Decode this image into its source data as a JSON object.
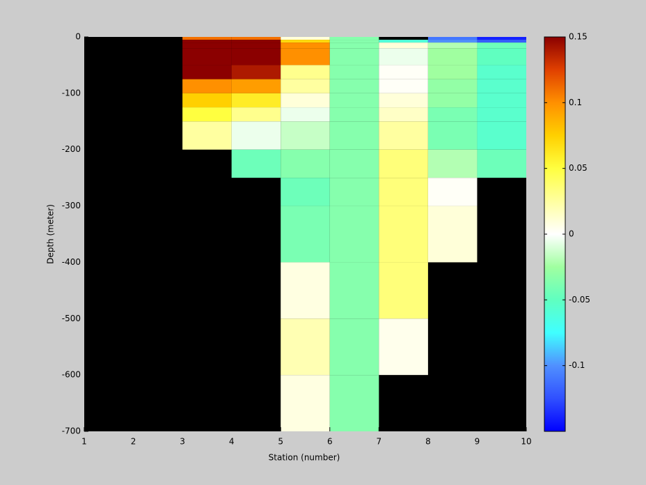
{
  "chart_data": {
    "type": "heatmap",
    "xlabel": "Station (number)",
    "ylabel": "Depth (meter)",
    "x": [
      1,
      2,
      3,
      4,
      5,
      6,
      7,
      8,
      9,
      10
    ],
    "y": [
      0,
      -5,
      -10,
      -20,
      -50,
      -75,
      -100,
      -125,
      -150,
      -200,
      -250,
      -300,
      -350,
      -400,
      -500,
      -600,
      -700
    ],
    "values": [
      [
        null,
        null,
        0.11,
        0.11,
        0.01,
        -0.035,
        null,
        -0.11,
        -0.14
      ],
      [
        null,
        null,
        0.15,
        0.15,
        0.07,
        -0.035,
        -0.06,
        -0.1,
        -0.12
      ],
      [
        null,
        null,
        0.15,
        0.15,
        0.1,
        -0.035,
        0.01,
        -0.02,
        -0.045
      ],
      [
        null,
        null,
        0.15,
        0.15,
        0.1,
        -0.035,
        -0.005,
        -0.025,
        -0.05
      ],
      [
        null,
        null,
        0.15,
        0.14,
        0.03,
        -0.035,
        0.002,
        -0.025,
        -0.055
      ],
      [
        null,
        null,
        0.1,
        0.095,
        0.025,
        -0.035,
        0.002,
        -0.03,
        -0.055
      ],
      [
        null,
        null,
        0.075,
        0.06,
        0.01,
        -0.035,
        0.01,
        -0.03,
        -0.055
      ],
      [
        null,
        null,
        0.05,
        0.03,
        -0.005,
        -0.035,
        0.015,
        -0.04,
        -0.055
      ],
      [
        null,
        null,
        0.025,
        -0.005,
        -0.015,
        -0.035,
        0.025,
        -0.04,
        -0.055
      ],
      [
        null,
        null,
        null,
        -0.045,
        -0.035,
        -0.035,
        0.035,
        -0.02,
        -0.045
      ],
      [
        null,
        null,
        null,
        null,
        -0.045,
        -0.035,
        0.035,
        0.002,
        null
      ],
      [
        null,
        null,
        null,
        null,
        -0.04,
        -0.035,
        0.035,
        0.01,
        null
      ],
      [
        null,
        null,
        null,
        null,
        -0.04,
        -0.035,
        0.035,
        0.01,
        null
      ],
      [
        null,
        null,
        null,
        null,
        0.008,
        -0.035,
        0.035,
        null,
        null
      ],
      [
        null,
        null,
        null,
        null,
        0.02,
        -0.035,
        0.005,
        null,
        null
      ],
      [
        null,
        null,
        null,
        null,
        0.008,
        -0.035,
        null,
        null,
        null
      ]
    ],
    "xlim": [
      1,
      10
    ],
    "xticks": [
      1,
      2,
      3,
      4,
      5,
      6,
      7,
      8,
      9,
      10
    ],
    "ylim": [
      -700,
      0
    ],
    "yticks": [
      0,
      -100,
      -200,
      -300,
      -400,
      -500,
      -600,
      -700
    ],
    "clim": [
      -0.15,
      0.15
    ],
    "cticks": [
      0.15,
      0.1,
      0.05,
      0,
      -0.05,
      -0.1
    ],
    "missing_color": "#000000",
    "colormap": [
      "#0000ff",
      "#3050ff",
      "#5090ff",
      "#40ffff",
      "#60ffc0",
      "#a0ffa0",
      "#ffffff",
      "#ffffa0",
      "#ffff40",
      "#ffd000",
      "#ff9000",
      "#e04000",
      "#8b0000"
    ]
  }
}
